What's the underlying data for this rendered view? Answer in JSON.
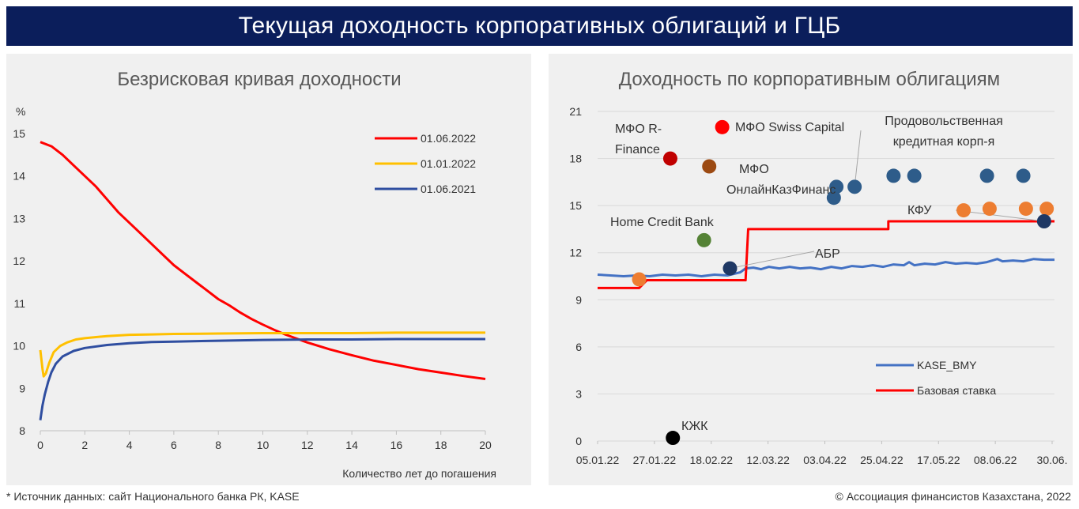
{
  "header": {
    "title": "Текущая доходность корпоративных облигаций и ГЦБ"
  },
  "footer": {
    "source": "* Источник данных: сайт Национального банка РК, KASE",
    "copyright": "© Ассоциация финансистов Казахстана, 2022"
  },
  "colors": {
    "banner": "#0b1e5b",
    "panel": "#f0f0f0",
    "red": "#ff0000",
    "gold": "#ffc000",
    "blue": "#2f4ea0"
  },
  "chart_data": [
    {
      "type": "line",
      "title": "Безрисковая кривая доходности",
      "ylabel": "%",
      "xlabel": "Количество лет до погашения",
      "xlim": [
        0,
        20
      ],
      "ylim": [
        8,
        15
      ],
      "xticks": [
        "0",
        "2",
        "4",
        "6",
        "8",
        "10",
        "12",
        "14",
        "16",
        "18",
        "20"
      ],
      "yticks": [
        "8",
        "9",
        "10",
        "11",
        "12",
        "13",
        "14",
        "15"
      ],
      "legend_position": "top-right",
      "series": [
        {
          "name": "01.06.2022",
          "color": "#ff0000",
          "points": [
            [
              0,
              14.8
            ],
            [
              0.5,
              14.7
            ],
            [
              1,
              14.5
            ],
            [
              1.5,
              14.25
            ],
            [
              2,
              14.0
            ],
            [
              2.5,
              13.75
            ],
            [
              3,
              13.45
            ],
            [
              3.5,
              13.15
            ],
            [
              4,
              12.9
            ],
            [
              4.5,
              12.65
            ],
            [
              5,
              12.4
            ],
            [
              5.5,
              12.15
            ],
            [
              6,
              11.9
            ],
            [
              6.5,
              11.7
            ],
            [
              7,
              11.5
            ],
            [
              7.5,
              11.3
            ],
            [
              8,
              11.1
            ],
            [
              8.5,
              10.95
            ],
            [
              9,
              10.78
            ],
            [
              9.5,
              10.63
            ],
            [
              10,
              10.5
            ],
            [
              10.5,
              10.38
            ],
            [
              11,
              10.27
            ],
            [
              12,
              10.08
            ],
            [
              13,
              9.92
            ],
            [
              14,
              9.78
            ],
            [
              15,
              9.65
            ],
            [
              16,
              9.55
            ],
            [
              17,
              9.45
            ],
            [
              18,
              9.37
            ],
            [
              19,
              9.29
            ],
            [
              20,
              9.22
            ]
          ]
        },
        {
          "name": "01.01.2022",
          "color": "#ffc000",
          "points": [
            [
              0,
              9.9
            ],
            [
              0.1,
              9.45
            ],
            [
              0.15,
              9.28
            ],
            [
              0.25,
              9.35
            ],
            [
              0.4,
              9.6
            ],
            [
              0.6,
              9.85
            ],
            [
              0.9,
              10.0
            ],
            [
              1.2,
              10.08
            ],
            [
              1.6,
              10.15
            ],
            [
              2,
              10.18
            ],
            [
              3,
              10.23
            ],
            [
              4,
              10.26
            ],
            [
              5,
              10.27
            ],
            [
              6,
              10.28
            ],
            [
              8,
              10.29
            ],
            [
              10,
              10.3
            ],
            [
              12,
              10.3
            ],
            [
              14,
              10.3
            ],
            [
              16,
              10.31
            ],
            [
              18,
              10.31
            ],
            [
              20,
              10.31
            ]
          ]
        },
        {
          "name": "01.06.2021",
          "color": "#2f4ea0",
          "points": [
            [
              0,
              8.25
            ],
            [
              0.1,
              8.6
            ],
            [
              0.2,
              8.85
            ],
            [
              0.35,
              9.15
            ],
            [
              0.5,
              9.38
            ],
            [
              0.7,
              9.58
            ],
            [
              1,
              9.75
            ],
            [
              1.5,
              9.88
            ],
            [
              2,
              9.95
            ],
            [
              3,
              10.02
            ],
            [
              4,
              10.06
            ],
            [
              5,
              10.09
            ],
            [
              6,
              10.1
            ],
            [
              8,
              10.12
            ],
            [
              10,
              10.14
            ],
            [
              12,
              10.15
            ],
            [
              14,
              10.15
            ],
            [
              16,
              10.16
            ],
            [
              18,
              10.16
            ],
            [
              20,
              10.16
            ]
          ]
        }
      ]
    },
    {
      "type": "scatter",
      "title": "Доходность по корпоративным облигациям",
      "xticks": [
        "05.01.22",
        "27.01.22",
        "18.02.22",
        "12.03.22",
        "03.04.22",
        "25.04.22",
        "17.05.22",
        "08.06.22",
        "30.06."
      ],
      "xlim": [
        0,
        176
      ],
      "ylim": [
        0,
        21
      ],
      "yticks": [
        "0",
        "3",
        "6",
        "9",
        "12",
        "15",
        "18",
        "21"
      ],
      "legend_position": "bottom-right",
      "lines": [
        {
          "name": "KASE_BMY",
          "color": "#4472c4",
          "points": [
            [
              0,
              10.6
            ],
            [
              5,
              10.55
            ],
            [
              10,
              10.5
            ],
            [
              15,
              10.55
            ],
            [
              20,
              10.5
            ],
            [
              25,
              10.6
            ],
            [
              30,
              10.55
            ],
            [
              35,
              10.6
            ],
            [
              40,
              10.5
            ],
            [
              45,
              10.6
            ],
            [
              50,
              10.55
            ],
            [
              55,
              10.75
            ],
            [
              57,
              11.0
            ],
            [
              60,
              11.05
            ],
            [
              63,
              10.95
            ],
            [
              66,
              11.1
            ],
            [
              70,
              11.0
            ],
            [
              74,
              11.1
            ],
            [
              78,
              11.0
            ],
            [
              82,
              11.05
            ],
            [
              86,
              10.95
            ],
            [
              90,
              11.1
            ],
            [
              94,
              11.0
            ],
            [
              98,
              11.15
            ],
            [
              102,
              11.1
            ],
            [
              106,
              11.2
            ],
            [
              110,
              11.1
            ],
            [
              114,
              11.25
            ],
            [
              118,
              11.2
            ],
            [
              120,
              11.4
            ],
            [
              122,
              11.2
            ],
            [
              126,
              11.3
            ],
            [
              130,
              11.25
            ],
            [
              134,
              11.4
            ],
            [
              138,
              11.3
            ],
            [
              142,
              11.35
            ],
            [
              146,
              11.3
            ],
            [
              150,
              11.4
            ],
            [
              154,
              11.6
            ],
            [
              156,
              11.45
            ],
            [
              160,
              11.5
            ],
            [
              164,
              11.45
            ],
            [
              168,
              11.6
            ],
            [
              172,
              11.55
            ],
            [
              176,
              11.55
            ]
          ]
        },
        {
          "name": "Базовая ставка",
          "color": "#ff0000",
          "step": true,
          "points": [
            [
              0,
              9.75
            ],
            [
              16,
              9.75
            ],
            [
              19,
              10.25
            ],
            [
              57,
              10.25
            ],
            [
              58,
              13.5
            ],
            [
              112,
              13.5
            ],
            [
              112,
              14.0
            ],
            [
              176,
              14.0
            ]
          ]
        }
      ],
      "points": [
        {
          "label": "МФО R- Finance",
          "x": 28,
          "y": 18.0,
          "color": "#c00000"
        },
        {
          "label": "МФО Swiss Capital",
          "x": 48,
          "y": 20.0,
          "color": "#ff0000"
        },
        {
          "label": "МФО ОнлайнКазФинанс",
          "x": 43,
          "y": 17.5,
          "color": "#9c4a12"
        },
        {
          "label": "Home Credit Bank",
          "x": 41,
          "y": 12.8,
          "color": "#548235"
        },
        {
          "label": "АБР",
          "x": 51,
          "y": 11.0,
          "color": "#1f3864"
        },
        {
          "label": "КЖК",
          "x": 29,
          "y": 0.2,
          "color": "#000000"
        },
        {
          "label": "Продовольственная кредитная корп-я",
          "x": 99,
          "y": 16.2,
          "color": "#2e5c8a"
        },
        {
          "label": "",
          "x": 92,
          "y": 16.2,
          "color": "#2e5c8a"
        },
        {
          "label": "",
          "x": 91,
          "y": 15.5,
          "color": "#2e5c8a"
        },
        {
          "label": "",
          "x": 114,
          "y": 16.9,
          "color": "#2e5c8a"
        },
        {
          "label": "",
          "x": 122,
          "y": 16.9,
          "color": "#2e5c8a"
        },
        {
          "label": "",
          "x": 150,
          "y": 16.9,
          "color": "#2e5c8a"
        },
        {
          "label": "",
          "x": 164,
          "y": 16.9,
          "color": "#2e5c8a"
        },
        {
          "label": "",
          "x": 16,
          "y": 10.3,
          "color": "#ed7d31"
        },
        {
          "label": "КФУ",
          "x": 141,
          "y": 14.7,
          "color": "#ed7d31"
        },
        {
          "label": "",
          "x": 151,
          "y": 14.8,
          "color": "#ed7d31"
        },
        {
          "label": "",
          "x": 165,
          "y": 14.8,
          "color": "#ed7d31"
        },
        {
          "label": "",
          "x": 173,
          "y": 14.8,
          "color": "#ed7d31"
        },
        {
          "label": "",
          "x": 172,
          "y": 14.0,
          "color": "#1f3864"
        }
      ]
    }
  ]
}
